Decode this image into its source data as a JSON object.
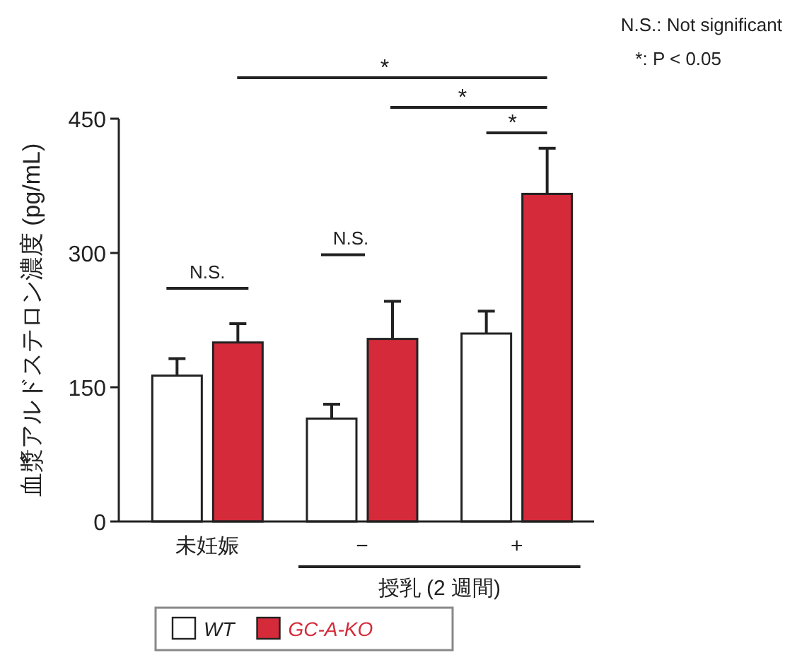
{
  "chart_data": {
    "type": "bar",
    "ylabel": "血漿アルドステロン濃度 (pg/mL)",
    "categories": [
      "未妊娠",
      "−",
      "+"
    ],
    "ylim": [
      0,
      450
    ],
    "yticks": [
      0,
      150,
      300,
      450
    ],
    "series": [
      {
        "name": "WT",
        "color": "#ffffff",
        "values": [
          163,
          115,
          210
        ],
        "errors": [
          [
            163,
            182
          ],
          [
            115,
            131
          ],
          [
            210,
            235
          ]
        ]
      },
      {
        "name": "GC-A-KO",
        "color": "#d42a3a",
        "values": [
          200,
          204,
          366
        ],
        "errors": [
          [
            200,
            221
          ],
          [
            204,
            246
          ],
          [
            366,
            417
          ]
        ]
      }
    ],
    "legend": "bottom",
    "annotations": [
      "N.S.",
      "N.S.",
      "*",
      "*",
      "*",
      "授乳 (2 週間)",
      "N.S.: Not significant",
      "*: P < 0.05"
    ]
  }
}
